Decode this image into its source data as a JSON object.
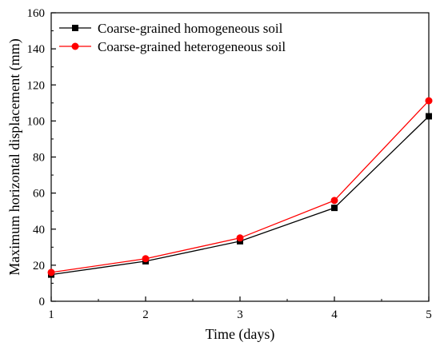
{
  "chart_data": {
    "type": "line",
    "title": "",
    "xlabel": "Time (days)",
    "ylabel": "Maximum horizontal displacement (mm)",
    "x": [
      1,
      2,
      3,
      4,
      5
    ],
    "xlim": [
      1,
      5
    ],
    "ylim": [
      0,
      160
    ],
    "xticks": [
      "1",
      "2",
      "3",
      "4",
      "5"
    ],
    "yticks": [
      "0",
      "20",
      "40",
      "60",
      "80",
      "100",
      "120",
      "140",
      "160"
    ],
    "grid": false,
    "legend_position": "top-left",
    "series": [
      {
        "name": "Coarse-grained homogeneous soil",
        "values": [
          14.8,
          22.2,
          33.3,
          51.8,
          102.6
        ],
        "color": "#000000",
        "marker": "square"
      },
      {
        "name": "Coarse-grained heterogeneous soil",
        "values": [
          16.0,
          23.6,
          35.1,
          55.9,
          111.2
        ],
        "color": "#ff0000",
        "marker": "circle"
      }
    ]
  }
}
